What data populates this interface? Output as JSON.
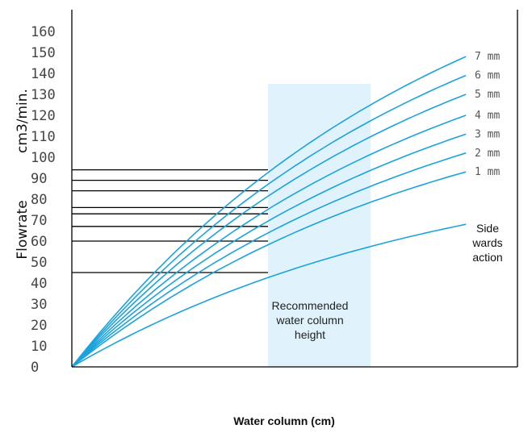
{
  "chart_data": {
    "type": "line",
    "title": "",
    "ylabel": "Flowrate",
    "ylabel_unit": "cm3/min.",
    "xlabel": "Water column (cm)",
    "ylim": [
      0,
      160
    ],
    "y_ticks": [
      0,
      10,
      20,
      30,
      40,
      50,
      60,
      70,
      80,
      90,
      100,
      110,
      120,
      130,
      140,
      150,
      160
    ],
    "x_ticks_shown": false,
    "grid": false,
    "line_color": "#1aa3dc",
    "recommended_band": {
      "label_lines": [
        "Recommended",
        "water column",
        "height"
      ],
      "color": "#e0f2fb"
    },
    "reference_lines": [
      94,
      89,
      84,
      76,
      73,
      67,
      60,
      45
    ],
    "series": [
      {
        "name": "7 mm",
        "end_value": 148
      },
      {
        "name": "6 mm",
        "end_value": 139
      },
      {
        "name": "5 mm",
        "end_value": 130
      },
      {
        "name": "4 mm",
        "end_value": 120
      },
      {
        "name": "3 mm",
        "end_value": 111
      },
      {
        "name": "2 mm",
        "end_value": 102
      },
      {
        "name": "1 mm",
        "end_value": 93
      },
      {
        "name": "Side wards action",
        "label_lines": [
          "Side",
          "wards",
          "action"
        ],
        "end_value": 68
      }
    ]
  }
}
